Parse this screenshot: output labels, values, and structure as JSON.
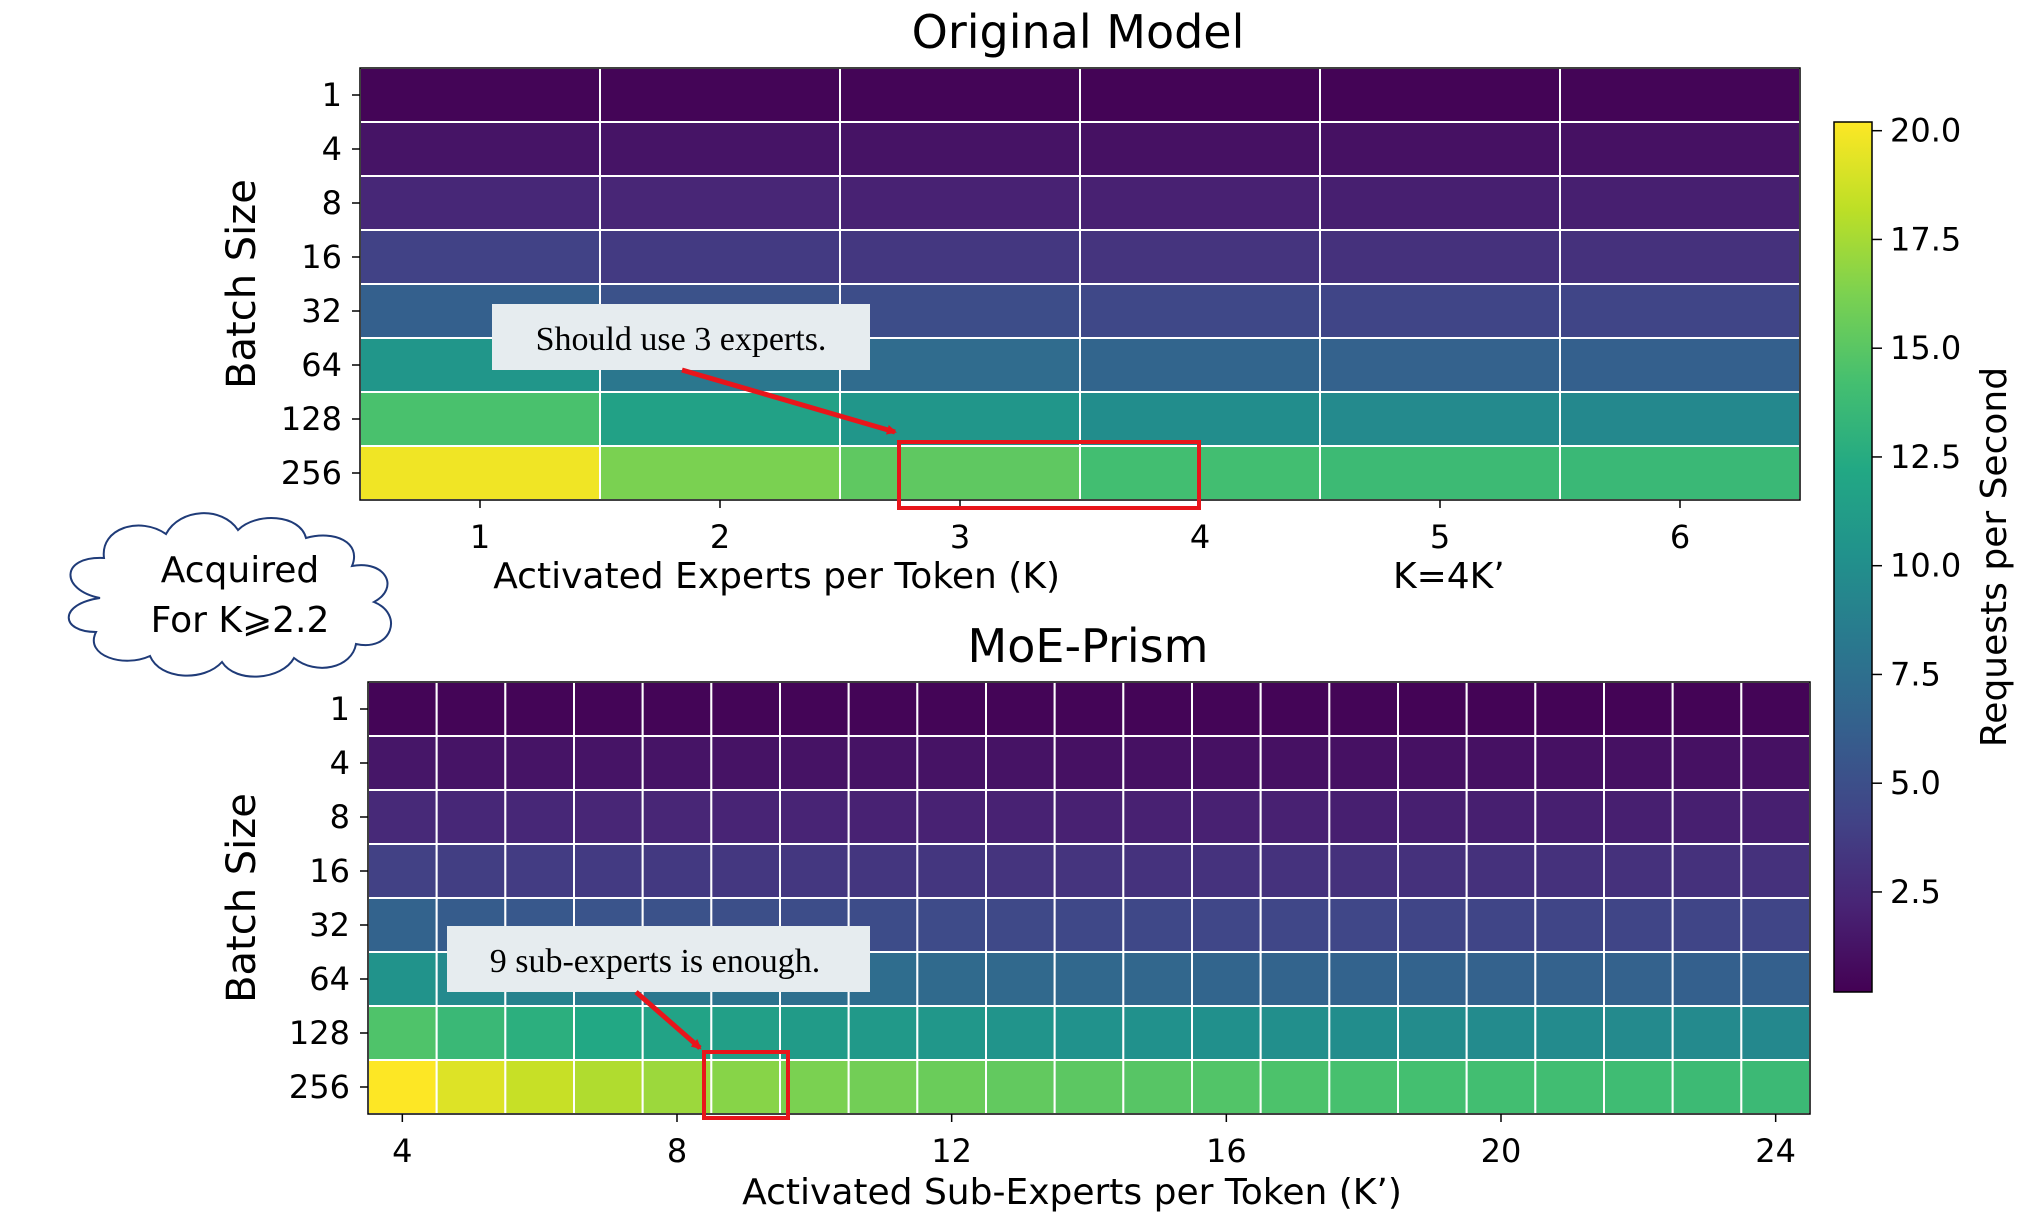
{
  "chart_data": [
    {
      "type": "heatmap",
      "title": "Original Model",
      "xlabel": "Activated Experts per Token (K)",
      "xlabel_note": "K=4K’",
      "ylabel": "Batch Size",
      "x_ticks": [
        "1",
        "2",
        "3",
        "4",
        "5",
        "6"
      ],
      "x_columns": [
        1,
        2,
        3,
        4,
        5,
        6
      ],
      "y_rows": [
        "1",
        "4",
        "8",
        "16",
        "32",
        "64",
        "128",
        "256"
      ],
      "grid": true,
      "values": [
        [
          0.4,
          0.4,
          0.4,
          0.35,
          0.35,
          0.4
        ],
        [
          1.3,
          1.3,
          1.2,
          1.1,
          1.1,
          1.1
        ],
        [
          2.4,
          2.3,
          2.1,
          2.0,
          1.9,
          1.9
        ],
        [
          4.1,
          3.6,
          3.4,
          3.2,
          3.0,
          3.0
        ],
        [
          6.3,
          5.2,
          4.9,
          4.5,
          4.3,
          4.3
        ],
        [
          10.6,
          8.1,
          7.2,
          6.7,
          6.4,
          6.3
        ],
        [
          14.4,
          11.6,
          10.6,
          9.9,
          9.6,
          9.5
        ],
        [
          19.8,
          16.2,
          15.2,
          14.1,
          13.8,
          13.6
        ]
      ],
      "annotation": "Should use 3 experts.",
      "highlight": {
        "row": "256",
        "column": "3"
      }
    },
    {
      "type": "heatmap",
      "title": "MoE-Prism",
      "xlabel": "Activated Sub-Experts per Token (K’)",
      "ylabel": "Batch Size",
      "x_ticks": [
        "4",
        "8",
        "12",
        "16",
        "20",
        "24"
      ],
      "x_columns": [
        4,
        5,
        6,
        7,
        8,
        9,
        10,
        11,
        12,
        13,
        14,
        15,
        16,
        17,
        18,
        19,
        20,
        21,
        22,
        23,
        24
      ],
      "y_rows": [
        "1",
        "4",
        "8",
        "16",
        "32",
        "64",
        "128",
        "256"
      ],
      "grid": true,
      "values": [
        [
          0.4,
          0.4,
          0.4,
          0.4,
          0.4,
          0.4,
          0.4,
          0.4,
          0.4,
          0.4,
          0.4,
          0.4,
          0.4,
          0.4,
          0.4,
          0.35,
          0.35,
          0.35,
          0.35,
          0.35,
          0.4
        ],
        [
          1.4,
          1.3,
          1.3,
          1.3,
          1.3,
          1.2,
          1.2,
          1.2,
          1.2,
          1.2,
          1.1,
          1.1,
          1.1,
          1.1,
          1.1,
          1.1,
          1.1,
          1.1,
          1.1,
          1.1,
          1.1
        ],
        [
          2.5,
          2.4,
          2.4,
          2.3,
          2.3,
          2.2,
          2.2,
          2.1,
          2.1,
          2.1,
          2.0,
          2.0,
          2.0,
          2.0,
          1.9,
          1.9,
          1.9,
          1.9,
          1.9,
          1.9,
          1.9
        ],
        [
          4.0,
          3.8,
          3.7,
          3.6,
          3.5,
          3.4,
          3.4,
          3.3,
          3.3,
          3.2,
          3.2,
          3.1,
          3.1,
          3.1,
          3.0,
          3.0,
          3.0,
          3.0,
          3.0,
          3.0,
          3.0
        ],
        [
          6.5,
          6.0,
          5.7,
          5.4,
          5.2,
          5.0,
          4.9,
          4.8,
          4.7,
          4.6,
          4.5,
          4.5,
          4.4,
          4.4,
          4.4,
          4.3,
          4.3,
          4.3,
          4.3,
          4.3,
          4.3
        ],
        [
          10.4,
          9.6,
          9.0,
          8.5,
          8.1,
          7.8,
          7.5,
          7.3,
          7.1,
          7.0,
          6.9,
          6.8,
          6.7,
          6.6,
          6.5,
          6.5,
          6.4,
          6.4,
          6.4,
          6.3,
          6.3
        ],
        [
          14.6,
          13.6,
          12.8,
          12.2,
          11.8,
          11.4,
          11.1,
          10.9,
          10.7,
          10.5,
          10.3,
          10.2,
          10.1,
          10.0,
          9.9,
          9.8,
          9.7,
          9.7,
          9.6,
          9.6,
          9.5
        ],
        [
          20.2,
          19.2,
          18.5,
          17.8,
          17.2,
          16.6,
          16.2,
          15.9,
          15.6,
          15.3,
          15.1,
          14.9,
          14.7,
          14.5,
          14.3,
          14.2,
          14.1,
          14.0,
          13.9,
          13.8,
          13.7
        ]
      ],
      "annotation": "9 sub-experts is enough.",
      "highlight": {
        "row": "256",
        "column": 9
      }
    }
  ],
  "colorbar": {
    "label": "Requests per Second",
    "min": 0.2,
    "max": 20.2,
    "ticks": [
      2.5,
      5.0,
      7.5,
      10.0,
      12.5,
      15.0,
      17.5,
      20.0
    ],
    "tick_labels": [
      "2.5",
      "5.0",
      "7.5",
      "10.0",
      "12.5",
      "15.0",
      "17.5",
      "20.0"
    ],
    "colormap": "viridis"
  },
  "cloud_note": {
    "line1": "Acquired",
    "line2": "For K⩾2.2"
  },
  "colors": {
    "highlight": "#e8151b",
    "annotation_box": "#e6ecef",
    "grid": "#ffffff"
  }
}
